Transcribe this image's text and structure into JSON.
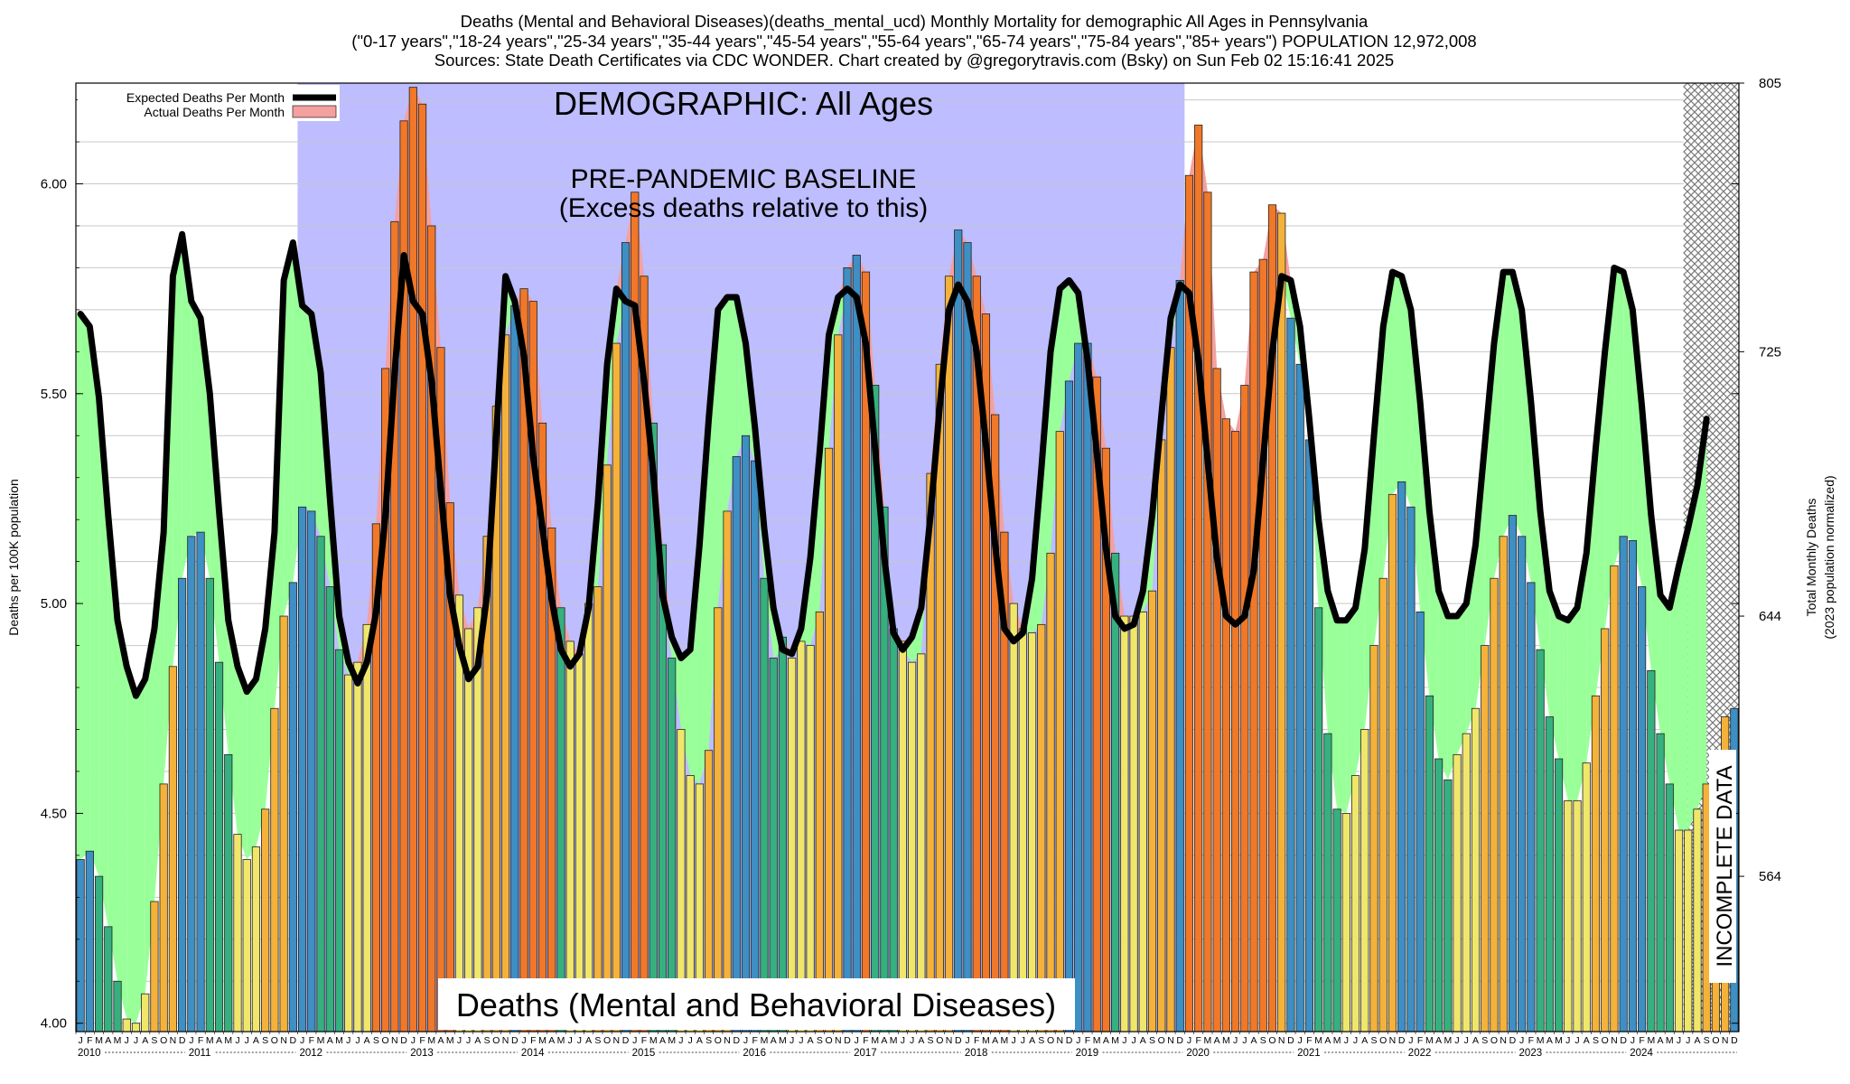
{
  "header": {
    "line1": "Deaths (Mental and Behavioral Diseases)(deaths_mental_ucd) Monthly Mortality for demographic All Ages in Pennsylvania",
    "line2": "(\"0-17 years\",\"18-24 years\",\"25-34 years\",\"35-44 years\",\"45-54 years\",\"55-64 years\",\"65-74 years\",\"75-84 years\",\"85+ years\") POPULATION 12,972,008",
    "line3": "Sources: State Death Certificates via CDC WONDER.            Chart created by @gregorytravis.com (Bsky) on Sun Feb 02 15:16:41 2025"
  },
  "annotations": {
    "demographic": "DEMOGRAPHIC: All Ages",
    "baseline_title": "PRE-PANDEMIC BASELINE",
    "baseline_sub": "(Excess deaths relative to this)",
    "bottom_label": "Deaths (Mental and Behavioral Diseases)",
    "incomplete": "INCOMPLETE DATA"
  },
  "legend": {
    "expected": "Expected Deaths Per Month",
    "actual": "Actual Deaths Per Month"
  },
  "colors": {
    "baseline_band": "#bdbdff",
    "expected_line": "#000000",
    "green_fill": "#99ff99",
    "excess_fill": "#f4a0a0",
    "winter_bar": "#3d8fc4",
    "spring_bar": "#35b07e",
    "summer_bar": "#f0e66a",
    "fall_bar": "#f4b23a",
    "excess_bar": "#f07828",
    "incomplete_hatch": "#888888"
  },
  "chart_data": {
    "type": "bar",
    "xlabel": "",
    "ylabel": "Deaths per 100K population",
    "y2label_line1": "Total Monthly Deaths",
    "y2label_line2": "(2023 population normalized)",
    "ylim": [
      3.98,
      6.24
    ],
    "yticks": [
      4.0,
      4.5,
      5.0,
      5.5,
      6.0
    ],
    "ytick_labels": [
      "4.00",
      "4.50",
      "5.00",
      "5.50",
      "6.00"
    ],
    "y2ticks": [
      {
        "label": "564",
        "value": 4.35
      },
      {
        "label": "644",
        "value": 4.97
      },
      {
        "label": "725",
        "value": 5.6
      },
      {
        "label": "805",
        "value": 6.24
      }
    ],
    "month_letters": [
      "J",
      "F",
      "M",
      "A",
      "M",
      "J",
      "J",
      "A",
      "S",
      "O",
      "N",
      "D"
    ],
    "years": [
      "2010",
      "2011",
      "2012",
      "2013",
      "2014",
      "2015",
      "2016",
      "2017",
      "2018",
      "2019",
      "2020",
      "2021",
      "2022",
      "2023",
      "2024"
    ],
    "baseline_period": [
      "2012-01",
      "2020-01"
    ],
    "incomplete_from": "2024-07",
    "grid": true,
    "legend_position": "top-left",
    "actual_series": {
      "name": "Actual Deaths Per Month",
      "start": "2010-01",
      "values": [
        4.39,
        4.41,
        4.35,
        4.23,
        4.1,
        4.01,
        4.0,
        4.07,
        4.29,
        4.57,
        4.85,
        5.06,
        5.16,
        5.17,
        5.06,
        4.86,
        4.64,
        4.45,
        4.39,
        4.42,
        4.51,
        4.75,
        4.97,
        5.05,
        5.23,
        5.22,
        5.16,
        5.04,
        4.89,
        4.83,
        4.86,
        4.95,
        5.19,
        5.56,
        5.91,
        6.15,
        6.23,
        6.19,
        5.9,
        5.61,
        5.24,
        5.02,
        4.94,
        4.99,
        5.16,
        5.47,
        5.64,
        5.71,
        5.75,
        5.72,
        5.43,
        5.18,
        4.99,
        4.91,
        4.88,
        5.0,
        5.04,
        5.33,
        5.62,
        5.86,
        5.98,
        5.78,
        5.43,
        5.14,
        4.87,
        4.7,
        4.59,
        4.57,
        4.65,
        4.99,
        5.22,
        5.35,
        5.4,
        5.34,
        5.06,
        4.87,
        4.92,
        4.87,
        4.91,
        4.9,
        4.98,
        5.37,
        5.64,
        5.8,
        5.83,
        5.79,
        5.52,
        5.23,
        4.94,
        4.91,
        4.86,
        4.88,
        5.31,
        5.57,
        5.78,
        5.89,
        5.86,
        5.78,
        5.69,
        5.45,
        5.17,
        5.0,
        4.94,
        4.93,
        4.95,
        5.12,
        5.41,
        5.53,
        5.62,
        5.62,
        5.54,
        5.37,
        5.12,
        4.97,
        4.97,
        4.98,
        5.03,
        5.39,
        5.61,
        5.77,
        6.02,
        6.14,
        5.98,
        5.56,
        5.44,
        5.41,
        5.52,
        5.79,
        5.82,
        5.95,
        5.93,
        5.68,
        5.57,
        5.39,
        4.99,
        4.69,
        4.51,
        4.5,
        4.59,
        4.7,
        4.9,
        5.06,
        5.26,
        5.29,
        5.23,
        4.98,
        4.78,
        4.63,
        4.58,
        4.64,
        4.69,
        4.75,
        4.9,
        5.06,
        5.16,
        5.21,
        5.16,
        5.05,
        4.89,
        4.73,
        4.63,
        4.53,
        4.53,
        4.62,
        4.78,
        4.94,
        5.09,
        5.16,
        5.15,
        5.04,
        4.84,
        4.69,
        4.57,
        4.46,
        4.46,
        4.51,
        4.57,
        4.64,
        4.73,
        4.75
      ]
    },
    "expected_series": {
      "name": "Expected Deaths Per Month",
      "start": "2010-01",
      "values": [
        5.69,
        5.66,
        5.49,
        5.21,
        4.96,
        4.85,
        4.78,
        4.82,
        4.94,
        5.17,
        5.78,
        5.88,
        5.72,
        5.68,
        5.5,
        5.22,
        4.96,
        4.85,
        4.79,
        4.82,
        4.94,
        5.17,
        5.77,
        5.86,
        5.71,
        5.69,
        5.55,
        5.25,
        4.97,
        4.86,
        4.81,
        4.86,
        4.98,
        5.21,
        5.55,
        5.83,
        5.72,
        5.69,
        5.53,
        5.27,
        5.02,
        4.9,
        4.82,
        4.85,
        5.02,
        5.4,
        5.78,
        5.72,
        5.59,
        5.35,
        5.18,
        5.01,
        4.89,
        4.85,
        4.88,
        4.99,
        5.24,
        5.57,
        5.75,
        5.72,
        5.71,
        5.53,
        5.31,
        5.02,
        4.92,
        4.87,
        4.89,
        5.14,
        5.44,
        5.7,
        5.73,
        5.73,
        5.62,
        5.42,
        5.18,
        4.99,
        4.89,
        4.88,
        4.94,
        5.11,
        5.36,
        5.64,
        5.73,
        5.75,
        5.73,
        5.62,
        5.37,
        5.11,
        4.93,
        4.89,
        4.92,
        4.99,
        5.21,
        5.47,
        5.7,
        5.76,
        5.72,
        5.6,
        5.38,
        5.14,
        4.94,
        4.91,
        4.93,
        5.06,
        5.32,
        5.6,
        5.75,
        5.77,
        5.74,
        5.58,
        5.36,
        5.13,
        4.97,
        4.94,
        4.95,
        5.03,
        5.21,
        5.45,
        5.68,
        5.76,
        5.74,
        5.58,
        5.34,
        5.11,
        4.97,
        4.95,
        4.97,
        5.08,
        5.34,
        5.6,
        5.78,
        5.77,
        5.66,
        5.44,
        5.2,
        5.03,
        4.96,
        4.96,
        4.99,
        5.13,
        5.4,
        5.66,
        5.79,
        5.78,
        5.7,
        5.48,
        5.22,
        5.03,
        4.97,
        4.97,
        5.0,
        5.14,
        5.38,
        5.62,
        5.79,
        5.79,
        5.7,
        5.48,
        5.22,
        5.03,
        4.97,
        4.96,
        4.99,
        5.12,
        5.37,
        5.6,
        5.8,
        5.79,
        5.7,
        5.47,
        5.21,
        5.02,
        4.99,
        5.09,
        5.18,
        5.28,
        5.44
      ]
    }
  }
}
